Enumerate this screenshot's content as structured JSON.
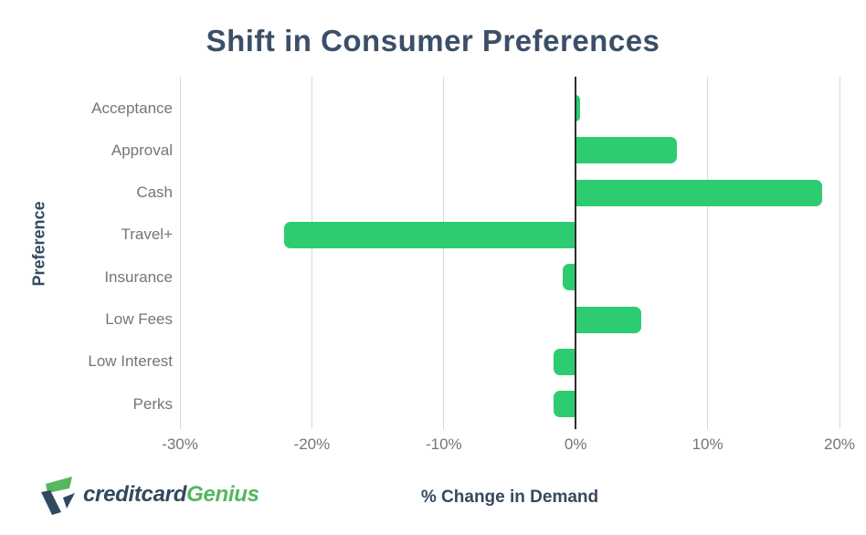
{
  "title": "Shift in Consumer Preferences",
  "branding": {
    "logo_text_primary": "creditcard",
    "logo_text_secondary": "Genius",
    "logo_icon": "checkmark-flag-icon"
  },
  "chart_data": {
    "type": "bar",
    "orientation": "horizontal",
    "title": "Shift in Consumer Preferences",
    "categories": [
      "Acceptance",
      "Approval",
      "Cash",
      "Travel+",
      "Insurance",
      "Low Fees",
      "Low Interest",
      "Perks"
    ],
    "values": [
      0.3,
      7.7,
      18.7,
      -22.1,
      -1.0,
      5.0,
      -1.7,
      -1.7
    ],
    "xlabel": "% Change in Demand",
    "ylabel": "Preference",
    "xlim": [
      -30,
      20
    ],
    "x_ticks": [
      "-30%",
      "-20%",
      "-10%",
      "0%",
      "10%",
      "20%"
    ],
    "x_tick_values": [
      -30,
      -20,
      -10,
      0,
      10,
      20
    ],
    "grid": true,
    "legend": "none",
    "bar_color": "#2ecc71"
  },
  "colors": {
    "background": "#ffffff",
    "bar": "#2ecc71",
    "title_text": "#3b5067",
    "axis_title_text": "#35495e",
    "tick_text": "#757575",
    "gridline": "#d9d9d9",
    "zero_line": "#2e2e2e",
    "logo_navy": "#31495f",
    "logo_green": "#55b75e"
  }
}
